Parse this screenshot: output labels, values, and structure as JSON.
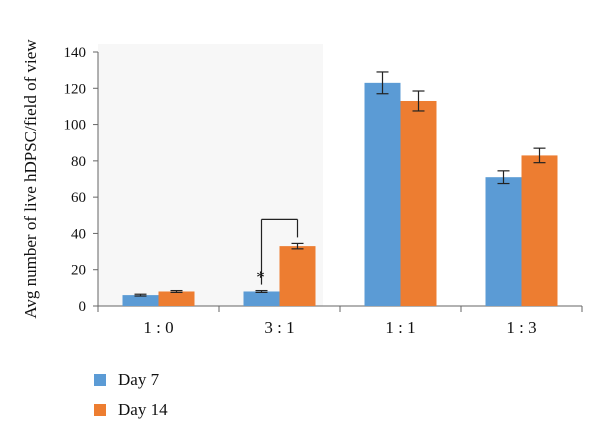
{
  "chart_data": {
    "type": "bar",
    "title": "",
    "xlabel": "",
    "ylabel": "Avg number of live hDPSC/field of view",
    "ylim": [
      0,
      140
    ],
    "yticks": [
      0,
      20,
      40,
      60,
      80,
      100,
      120,
      140
    ],
    "categories": [
      "1 : 0",
      "3 : 1",
      "1 : 1",
      "1 : 3"
    ],
    "grid": false,
    "legend_position": "bottom-left",
    "series": [
      {
        "name": "Day 7",
        "color": "#5b9bd5",
        "values": [
          6,
          8,
          123,
          71
        ],
        "errors": [
          0.5,
          0.5,
          6,
          3.5
        ]
      },
      {
        "name": "Day 14",
        "color": "#ed7d31",
        "values": [
          8,
          33,
          113,
          83
        ],
        "errors": [
          0.5,
          1.5,
          5.5,
          4
        ]
      }
    ],
    "annotations": [
      {
        "text": "*",
        "category": "3 : 1",
        "type": "significance-bracket"
      }
    ]
  }
}
